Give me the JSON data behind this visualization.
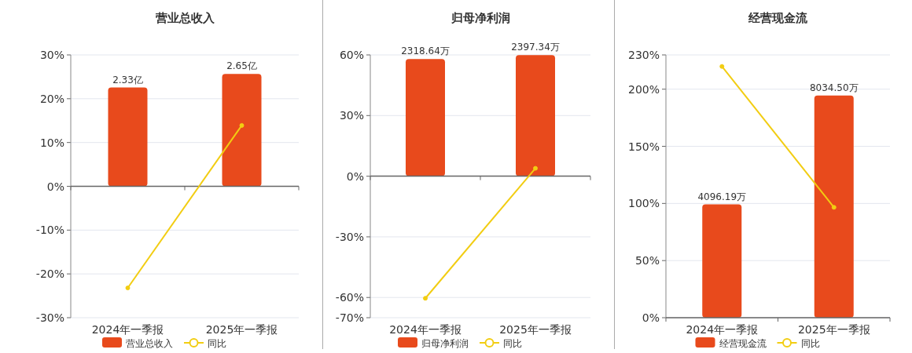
{
  "chart_data": [
    {
      "type": "bar",
      "title": "营业总收入",
      "categories": [
        "2024年一季报",
        "2025年一季报"
      ],
      "series": [
        {
          "name": "营业总收入",
          "axis": "y2",
          "color": "#e84a1c",
          "values": [
            2.33,
            2.65
          ],
          "value_labels": [
            "2.33亿",
            "2.65亿"
          ]
        },
        {
          "name": "同比",
          "type": "line",
          "color": "#f2cd12",
          "values": [
            -23.2,
            13.9
          ]
        }
      ],
      "ylim": [
        -30,
        30
      ],
      "yticks": [
        {
          "value": -30,
          "label": "-30%"
        },
        {
          "value": -20,
          "label": "-20%"
        },
        {
          "value": -10,
          "label": "-10%"
        },
        {
          "value": 0,
          "label": "0%"
        },
        {
          "value": 10,
          "label": "10%"
        },
        {
          "value": 20,
          "label": "20%"
        },
        {
          "value": 30,
          "label": "30%"
        }
      ],
      "y2lim": [
        -3.1,
        3.1
      ],
      "grid": "y",
      "legend": "bottom",
      "marker": "circle"
    },
    {
      "type": "bar",
      "title": "归母净利润",
      "categories": [
        "2024年一季报",
        "2025年一季报"
      ],
      "series": [
        {
          "name": "归母净利润",
          "axis": "y2",
          "color": "#e84a1c",
          "values": [
            2318.64,
            2397.34
          ],
          "value_labels": [
            "2318.64万",
            "2397.34万"
          ]
        },
        {
          "name": "同比",
          "type": "line",
          "color": "#f2cd12",
          "values": [
            -60.4,
            3.9
          ]
        }
      ],
      "ylim": [
        -70,
        60
      ],
      "yticks": [
        {
          "value": -70,
          "label": "-70%"
        },
        {
          "value": -60,
          "label": "-60%"
        },
        {
          "value": -30,
          "label": "-30%"
        },
        {
          "value": 0,
          "label": "0%"
        },
        {
          "value": 30,
          "label": "30%"
        },
        {
          "value": 60,
          "label": "60%"
        }
      ],
      "y2lim": [
        -2800,
        2400
      ],
      "grid": "y",
      "legend": "bottom",
      "marker": "circle"
    },
    {
      "type": "bar",
      "title": "经营现金流",
      "categories": [
        "2024年一季报",
        "2025年一季报"
      ],
      "series": [
        {
          "name": "经营现金流",
          "axis": "y2",
          "color": "#e84a1c",
          "values": [
            4096.19,
            8034.5
          ],
          "value_labels": [
            "4096.19万",
            "8034.50万"
          ]
        },
        {
          "name": "同比",
          "type": "line",
          "color": "#f2cd12",
          "values": [
            219.9,
            96.6
          ]
        }
      ],
      "ylim": [
        0,
        230
      ],
      "yticks": [
        {
          "value": 0,
          "label": "0%"
        },
        {
          "value": 50,
          "label": "50%"
        },
        {
          "value": 100,
          "label": "100%"
        },
        {
          "value": 150,
          "label": "150%"
        },
        {
          "value": 200,
          "label": "200%"
        },
        {
          "value": 230,
          "label": "230%"
        }
      ],
      "y2lim": [
        0,
        9500
      ],
      "grid": "y",
      "legend": "bottom",
      "marker": "circle"
    }
  ]
}
